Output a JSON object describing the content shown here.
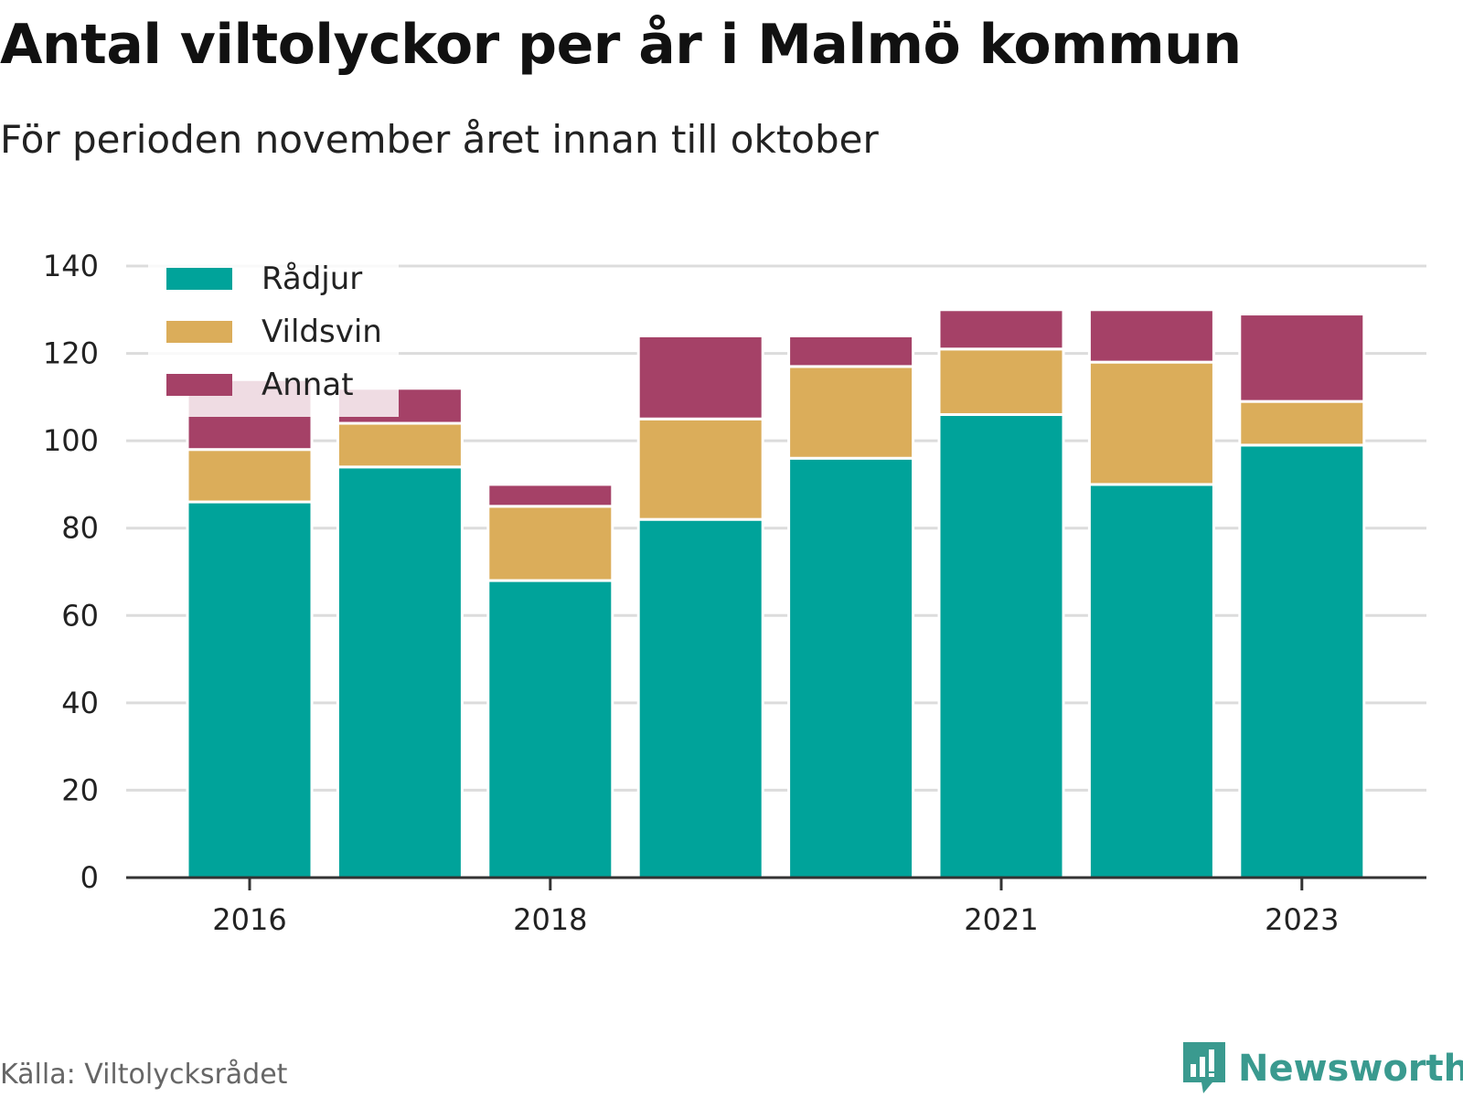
{
  "header": {
    "title": "Antal viltolyckor per år i Malmö kommun",
    "subtitle": "För perioden november året innan till oktober"
  },
  "footer": {
    "source": "Källa: Viltolycksrådet",
    "brand": "Newsworthy",
    "brand_icon": "newsworthy-logo-icon",
    "brand_color": "#3a9a8f"
  },
  "chart_data": {
    "type": "bar",
    "stacked": true,
    "x": [
      2016,
      2017,
      2018,
      2019,
      2020,
      2021,
      2022,
      2023
    ],
    "x_tick_labels": [
      "2016",
      "2018",
      "2021",
      "2023"
    ],
    "x_tick_values": [
      2016,
      2018,
      2021,
      2023
    ],
    "ylim": [
      0,
      140
    ],
    "y_ticks": [
      0,
      20,
      40,
      60,
      80,
      100,
      120,
      140
    ],
    "grid": true,
    "legend_position": "top-left",
    "series": [
      {
        "name": "Rådjur",
        "color": "#00a39a",
        "values": [
          86,
          94,
          68,
          82,
          96,
          106,
          90,
          99
        ]
      },
      {
        "name": "Vildsvin",
        "color": "#dbad5a",
        "values": [
          12,
          10,
          17,
          23,
          21,
          15,
          28,
          10
        ]
      },
      {
        "name": "Annat",
        "color": "#a54167",
        "values": [
          16,
          8,
          5,
          19,
          7,
          9,
          12,
          20
        ]
      }
    ]
  }
}
